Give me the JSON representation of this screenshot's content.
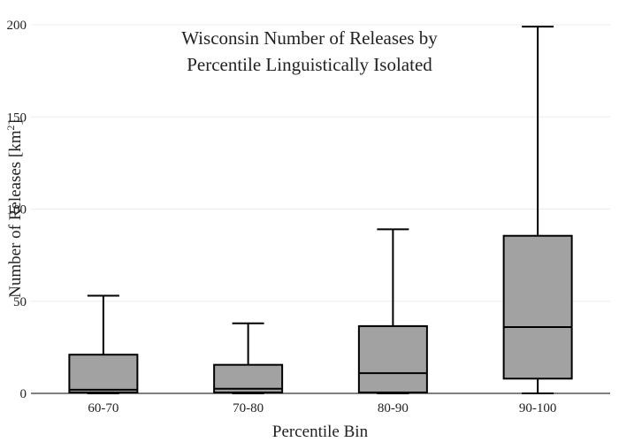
{
  "chart_data": {
    "type": "box",
    "title_lines": [
      "Wisconsin Number of Releases by",
      "Percentile Linguistically Isolated"
    ],
    "xlabel": "Percentile Bin",
    "ylabel_main": "Number of Releases  [km",
    "ylabel_sup": "2",
    "ylabel_end": "]",
    "ylim": [
      0,
      200
    ],
    "yticks": [
      0,
      50,
      100,
      150,
      200
    ],
    "grid": true,
    "box_color": "#a2a2a2",
    "categories": [
      "60-70",
      "70-80",
      "80-90",
      "90-100"
    ],
    "boxes": [
      {
        "min": 0,
        "q1": 0.5,
        "median": 2,
        "q3": 21,
        "max": 53
      },
      {
        "min": 0,
        "q1": 0.5,
        "median": 2.5,
        "q3": 15.5,
        "max": 38
      },
      {
        "min": 0,
        "q1": 0.5,
        "median": 11,
        "q3": 36.5,
        "max": 89
      },
      {
        "min": 0,
        "q1": 8,
        "median": 36,
        "q3": 85.5,
        "max": 199
      }
    ]
  }
}
